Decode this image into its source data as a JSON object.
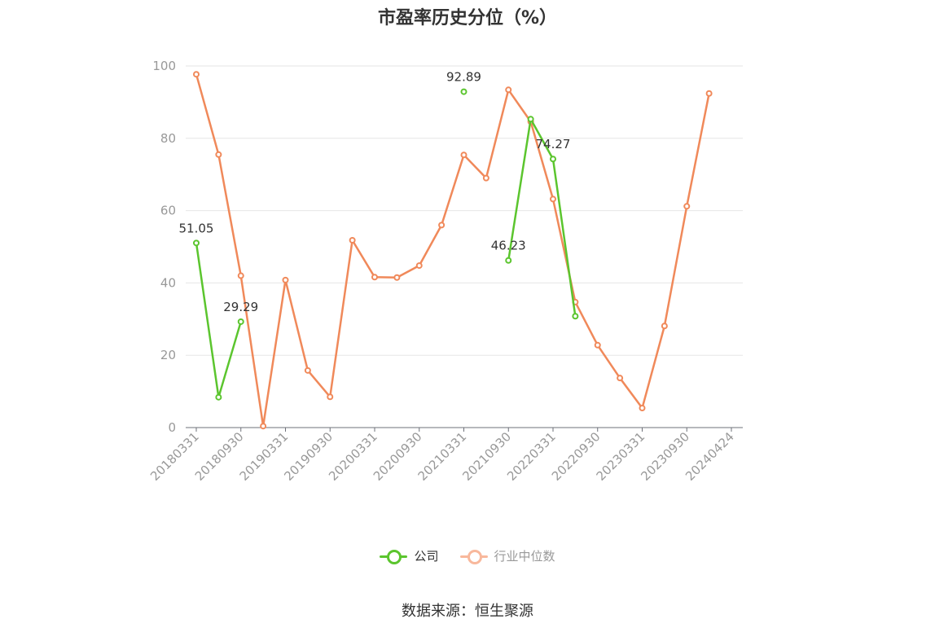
{
  "chart_data": {
    "type": "line",
    "title": "市盈率历史分位（%）",
    "xlabel": "",
    "ylabel": "",
    "ylim": [
      0,
      100
    ],
    "yticks": [
      0,
      20,
      40,
      60,
      80,
      100
    ],
    "grid": true,
    "legend_position": "bottom",
    "x": [
      "20180331",
      "20180630",
      "20180930",
      "20181231",
      "20190331",
      "20190630",
      "20190930",
      "20191231",
      "20200331",
      "20200630",
      "20200930",
      "20201231",
      "20210331",
      "20210630",
      "20210930",
      "20211231",
      "20220331",
      "20220630",
      "20220930",
      "20221231",
      "20230331",
      "20230630",
      "20230930",
      "20231231",
      "20240424"
    ],
    "xtick_labels": [
      "20180331",
      "20180930",
      "20190331",
      "20190930",
      "20200331",
      "20200930",
      "20210331",
      "20210930",
      "20220331",
      "20220930",
      "20230331",
      "20230930",
      "20240424"
    ],
    "series": [
      {
        "name": "公司",
        "color": "#5bc52e",
        "values": [
          51.05,
          8.4,
          29.29,
          null,
          null,
          null,
          null,
          null,
          null,
          null,
          null,
          null,
          92.89,
          null,
          46.23,
          85.3,
          74.27,
          30.8,
          null,
          null,
          null,
          null,
          null,
          null,
          null
        ],
        "labels": [
          {
            "index": 0,
            "text": "51.05"
          },
          {
            "index": 2,
            "text": "29.29"
          },
          {
            "index": 12,
            "text": "92.89"
          },
          {
            "index": 14,
            "text": "46.23"
          },
          {
            "index": 16,
            "text": "74.27"
          }
        ]
      },
      {
        "name": "行业中位数",
        "color": "#f0895a",
        "legend_color": "#f8b89c",
        "values": [
          97.7,
          75.5,
          42.0,
          0.4,
          40.8,
          15.8,
          8.5,
          51.8,
          41.6,
          41.5,
          44.8,
          56.0,
          75.4,
          69.0,
          93.4,
          84.6,
          63.2,
          34.7,
          22.8,
          13.7,
          5.4,
          28.1,
          61.2,
          92.4,
          null
        ]
      }
    ]
  },
  "source": "数据来源：恒生聚源"
}
